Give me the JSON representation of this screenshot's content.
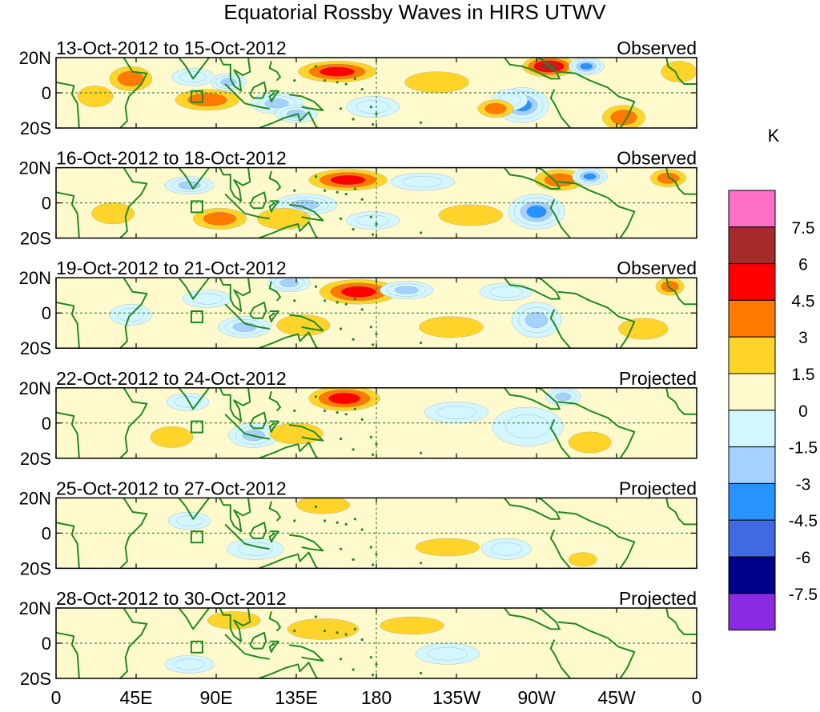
{
  "chart_data": {
    "type": "heatmap",
    "title": "Equatorial Rossby Waves in HIRS UTWV",
    "unit_label": "K",
    "lat_ticks": [
      "20N",
      "0",
      "20S"
    ],
    "lon_ticks": [
      "0",
      "45E",
      "90E",
      "135E",
      "180",
      "135W",
      "90W",
      "45W",
      "0"
    ],
    "lat_range": [
      -20,
      20
    ],
    "lon_range": [
      0,
      360
    ],
    "colorbar": {
      "levels": [
        "7.5",
        "6",
        "4.5",
        "3",
        "1.5",
        "0",
        "-1.5",
        "-3",
        "-4.5",
        "-6",
        "-7.5"
      ],
      "colors": [
        "#ff6ec7",
        "#a52a2a",
        "#ff0000",
        "#ff7a00",
        "#ffd42a",
        "#fffacd",
        "#d4f6ff",
        "#a6d0ff",
        "#2893ff",
        "#4169e1",
        "#00008b",
        "#8a2be2"
      ]
    },
    "panels": [
      {
        "dates": "13-Oct-2012 to 15-Oct-2012",
        "status": "Observed",
        "blobs": [
          {
            "lon": 158,
            "lat": 12,
            "rx": 22,
            "ry": 6,
            "v": 4.5
          },
          {
            "lon": 85,
            "lat": -4,
            "rx": 18,
            "ry": 6,
            "v": 3
          },
          {
            "lon": 42,
            "lat": 8,
            "rx": 12,
            "ry": 7,
            "v": 3
          },
          {
            "lon": 22,
            "lat": -2,
            "rx": 10,
            "ry": 6,
            "v": 1.5
          },
          {
            "lon": 97,
            "lat": 6,
            "rx": 10,
            "ry": 5,
            "v": -3
          },
          {
            "lon": 124,
            "lat": -6,
            "rx": 15,
            "ry": 6,
            "v": -3
          },
          {
            "lon": 135,
            "lat": -12,
            "rx": 12,
            "ry": 5,
            "v": -3
          },
          {
            "lon": 77,
            "lat": 9,
            "rx": 12,
            "ry": 5,
            "v": -1.5
          },
          {
            "lon": 178,
            "lat": -8,
            "rx": 15,
            "ry": 6,
            "v": -1.5
          },
          {
            "lon": 262,
            "lat": -7,
            "rx": 15,
            "ry": 10,
            "v": -4.5
          },
          {
            "lon": 255,
            "lat": -4,
            "rx": 10,
            "ry": 6,
            "v": -1.5
          },
          {
            "lon": 277,
            "lat": 15,
            "rx": 15,
            "ry": 6,
            "v": 6
          },
          {
            "lon": 298,
            "lat": 15,
            "rx": 10,
            "ry": 5,
            "v": -4.5
          },
          {
            "lon": 247,
            "lat": -9,
            "rx": 10,
            "ry": 5,
            "v": 3
          },
          {
            "lon": 319,
            "lat": -14,
            "rx": 12,
            "ry": 7,
            "v": 3
          },
          {
            "lon": 350,
            "lat": 12,
            "rx": 10,
            "ry": 6,
            "v": 1.5
          },
          {
            "lon": 214,
            "lat": 6,
            "rx": 18,
            "ry": 6,
            "v": 1.5
          }
        ]
      },
      {
        "dates": "16-Oct-2012 to 18-Oct-2012",
        "status": "Observed",
        "blobs": [
          {
            "lon": 164,
            "lat": 13,
            "rx": 22,
            "ry": 6,
            "v": 4.5
          },
          {
            "lon": 92,
            "lat": -9,
            "rx": 15,
            "ry": 6,
            "v": 3
          },
          {
            "lon": 32,
            "lat": -6,
            "rx": 12,
            "ry": 6,
            "v": 1.5
          },
          {
            "lon": 75,
            "lat": 10,
            "rx": 14,
            "ry": 5,
            "v": -3
          },
          {
            "lon": 140,
            "lat": -1,
            "rx": 18,
            "ry": 6,
            "v": -3
          },
          {
            "lon": 128,
            "lat": -9,
            "rx": 15,
            "ry": 6,
            "v": 1.5
          },
          {
            "lon": 270,
            "lat": -5,
            "rx": 16,
            "ry": 10,
            "v": -4.5
          },
          {
            "lon": 283,
            "lat": 13,
            "rx": 14,
            "ry": 6,
            "v": 3
          },
          {
            "lon": 300,
            "lat": 15,
            "rx": 10,
            "ry": 5,
            "v": -4.5
          },
          {
            "lon": 233,
            "lat": -7,
            "rx": 18,
            "ry": 6,
            "v": 1.5
          },
          {
            "lon": 178,
            "lat": -10,
            "rx": 15,
            "ry": 5,
            "v": -1.5
          },
          {
            "lon": 344,
            "lat": 14,
            "rx": 10,
            "ry": 5,
            "v": 3
          },
          {
            "lon": 206,
            "lat": 12,
            "rx": 18,
            "ry": 5,
            "v": -1.5
          }
        ]
      },
      {
        "dates": "19-Oct-2012 to 21-Oct-2012",
        "status": "Observed",
        "blobs": [
          {
            "lon": 170,
            "lat": 12,
            "rx": 22,
            "ry": 7,
            "v": 4.5
          },
          {
            "lon": 106,
            "lat": -8,
            "rx": 15,
            "ry": 6,
            "v": -3
          },
          {
            "lon": 85,
            "lat": 8,
            "rx": 14,
            "ry": 5,
            "v": -1.5
          },
          {
            "lon": 139,
            "lat": -7,
            "rx": 15,
            "ry": 6,
            "v": 1.5
          },
          {
            "lon": 270,
            "lat": -4,
            "rx": 14,
            "ry": 10,
            "v": -3
          },
          {
            "lon": 222,
            "lat": -8,
            "rx": 18,
            "ry": 6,
            "v": 1.5
          },
          {
            "lon": 253,
            "lat": 12,
            "rx": 15,
            "ry": 5,
            "v": -1.5
          },
          {
            "lon": 330,
            "lat": -9,
            "rx": 14,
            "ry": 6,
            "v": 1.5
          },
          {
            "lon": 345,
            "lat": 15,
            "rx": 8,
            "ry": 5,
            "v": 3
          },
          {
            "lon": 42,
            "lat": -1,
            "rx": 12,
            "ry": 6,
            "v": -1.5
          },
          {
            "lon": 197,
            "lat": 13,
            "rx": 15,
            "ry": 5,
            "v": -3
          },
          {
            "lon": 131,
            "lat": 17,
            "rx": 12,
            "ry": 5,
            "v": -3
          }
        ]
      },
      {
        "dates": "22-Oct-2012 to 24-Oct-2012",
        "status": "Projected",
        "blobs": [
          {
            "lon": 162,
            "lat": 14,
            "rx": 20,
            "ry": 7,
            "v": 4.5
          },
          {
            "lon": 111,
            "lat": -7,
            "rx": 14,
            "ry": 7,
            "v": -3
          },
          {
            "lon": 135,
            "lat": -6,
            "rx": 15,
            "ry": 6,
            "v": 1.5
          },
          {
            "lon": 265,
            "lat": -2,
            "rx": 20,
            "ry": 11,
            "v": -1.5
          },
          {
            "lon": 300,
            "lat": -11,
            "rx": 12,
            "ry": 6,
            "v": 1.5
          },
          {
            "lon": 65,
            "lat": -8,
            "rx": 12,
            "ry": 6,
            "v": 1.5
          },
          {
            "lon": 225,
            "lat": 6,
            "rx": 18,
            "ry": 6,
            "v": -1.5
          },
          {
            "lon": 285,
            "lat": 15,
            "rx": 10,
            "ry": 5,
            "v": -3
          },
          {
            "lon": 74,
            "lat": 12,
            "rx": 12,
            "ry": 5,
            "v": -1.5
          }
        ]
      },
      {
        "dates": "25-Oct-2012 to 27-Oct-2012",
        "status": "Projected",
        "blobs": [
          {
            "lon": 112,
            "lat": -9,
            "rx": 16,
            "ry": 6,
            "v": -1.5
          },
          {
            "lon": 150,
            "lat": 16,
            "rx": 15,
            "ry": 5,
            "v": 1.5
          },
          {
            "lon": 220,
            "lat": -8,
            "rx": 18,
            "ry": 5,
            "v": 1.5
          },
          {
            "lon": 253,
            "lat": -9,
            "rx": 14,
            "ry": 6,
            "v": -1.5
          },
          {
            "lon": 296,
            "lat": -15,
            "rx": 8,
            "ry": 4,
            "v": 1.5
          },
          {
            "lon": 75,
            "lat": 7,
            "rx": 12,
            "ry": 5,
            "v": -1.5
          }
        ]
      },
      {
        "dates": "28-Oct-2012 to 30-Oct-2012",
        "status": "Projected",
        "blobs": [
          {
            "lon": 100,
            "lat": 13,
            "rx": 15,
            "ry": 5,
            "v": 1.5
          },
          {
            "lon": 150,
            "lat": 8,
            "rx": 20,
            "ry": 6,
            "v": 1.5
          },
          {
            "lon": 220,
            "lat": -6,
            "rx": 18,
            "ry": 6,
            "v": -1.5
          },
          {
            "lon": 200,
            "lat": 10,
            "rx": 18,
            "ry": 5,
            "v": 1.5
          },
          {
            "lon": 75,
            "lat": -12,
            "rx": 14,
            "ry": 5,
            "v": -1.5
          }
        ]
      }
    ]
  }
}
